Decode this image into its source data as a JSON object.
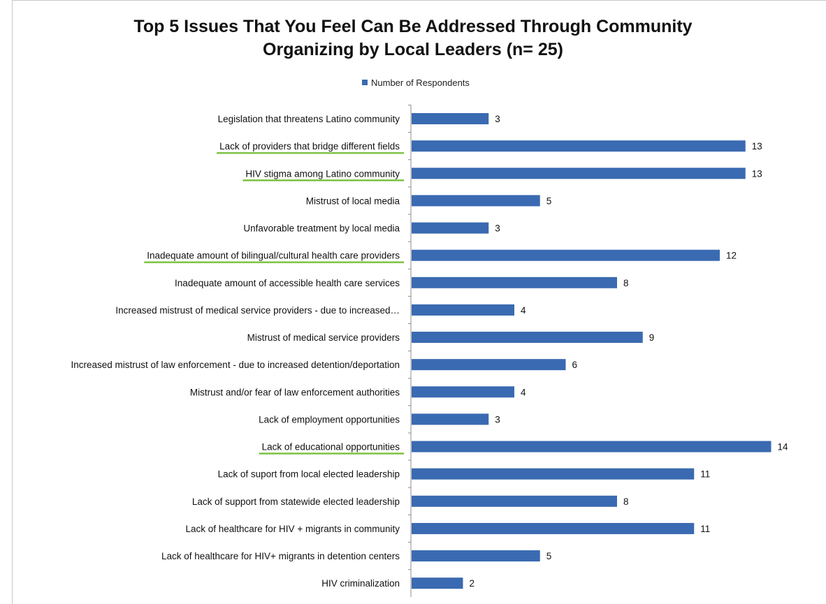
{
  "chart_data": {
    "type": "bar",
    "orientation": "horizontal",
    "title": "Top 5 Issues That You Feel Can Be Addressed Through Community Organizing by Local Leaders (n= 25)",
    "title_lines": [
      "Top 5 Issues That You Feel Can Be Addressed Through Community",
      "Organizing by Local Leaders (n= 25)"
    ],
    "legend": {
      "position": "top",
      "entries": [
        "Number of Respondents"
      ]
    },
    "series": [
      {
        "name": "Number of Respondents",
        "color": "#3a6ab1"
      }
    ],
    "categories": [
      "Legislation that threatens Latino community",
      "Lack of providers that bridge different fields",
      "HIV stigma among Latino community",
      "Mistrust of local media",
      "Unfavorable treatment by local media",
      "Inadequate amount of bilingual/cultural health care providers",
      "Inadequate amount of accessible health care services",
      "Increased mistrust of medical service providers - due to increased…",
      "Mistrust of medical service providers",
      "Increased mistrust of law enforcement - due to increased detention/deportation",
      "Mistrust and/or fear of law enforcement authorities",
      "Lack of employment opportunities",
      "Lack of educational opportunities",
      "Lack of suport from local elected leadership",
      "Lack of support from statewide elected leadership",
      "Lack of healthcare for HIV + migrants in community",
      "Lack of healthcare for HIV+ migrants in detention centers",
      "HIV criminalization"
    ],
    "values": [
      3,
      13,
      13,
      5,
      3,
      12,
      8,
      4,
      9,
      6,
      4,
      3,
      14,
      11,
      8,
      11,
      5,
      2
    ],
    "highlighted_categories": [
      "Lack of providers that bridge different fields",
      "HIV stigma among Latino community",
      "Inadequate amount of bilingual/cultural health care providers",
      "Lack of educational opportunities"
    ],
    "highlight_color": "#7dc242",
    "xlim": [
      0,
      14
    ],
    "grid": false,
    "xlabel": "",
    "ylabel": ""
  }
}
